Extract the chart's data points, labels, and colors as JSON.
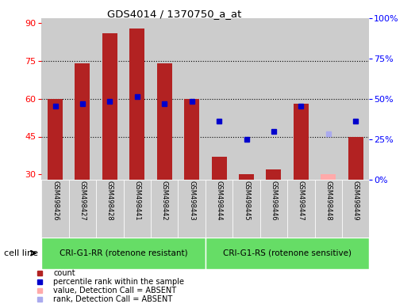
{
  "title": "GDS4014 / 1370750_a_at",
  "samples": [
    "GSM498426",
    "GSM498427",
    "GSM498428",
    "GSM498441",
    "GSM498442",
    "GSM498443",
    "GSM498444",
    "GSM498445",
    "GSM498446",
    "GSM498447",
    "GSM498448",
    "GSM498449"
  ],
  "group1_label": "CRI-G1-RR (rotenone resistant)",
  "group2_label": "CRI-G1-RS (rotenone sensitive)",
  "cell_line_label": "cell line",
  "bar_values": [
    60,
    74,
    86,
    88,
    74,
    60,
    37,
    30,
    32,
    58,
    30,
    45
  ],
  "bar_absent": [
    false,
    false,
    false,
    false,
    false,
    false,
    false,
    false,
    false,
    false,
    true,
    false
  ],
  "rank_values": [
    57,
    58,
    59,
    61,
    58,
    59,
    51,
    44,
    47,
    57,
    46,
    51
  ],
  "rank_absent": [
    false,
    false,
    false,
    false,
    false,
    false,
    false,
    false,
    false,
    false,
    true,
    false
  ],
  "ylim_left": [
    28,
    92
  ],
  "yticks_left": [
    30,
    45,
    60,
    75,
    90
  ],
  "yticks_right": [
    0,
    25,
    50,
    75,
    100
  ],
  "ytick_labels_right": [
    "0%",
    "25%",
    "50%",
    "75%",
    "100%"
  ],
  "bar_color": "#b22222",
  "bar_absent_color": "#ffaaaa",
  "rank_color": "#0000cc",
  "rank_absent_color": "#aaaaee",
  "col_bg_color": "#cccccc",
  "group1_bg": "#66dd66",
  "group2_bg": "#66dd66",
  "legend_items": [
    {
      "label": "count",
      "color": "#b22222"
    },
    {
      "label": "percentile rank within the sample",
      "color": "#0000cc"
    },
    {
      "label": "value, Detection Call = ABSENT",
      "color": "#ffaaaa"
    },
    {
      "label": "rank, Detection Call = ABSENT",
      "color": "#aaaaee"
    }
  ]
}
